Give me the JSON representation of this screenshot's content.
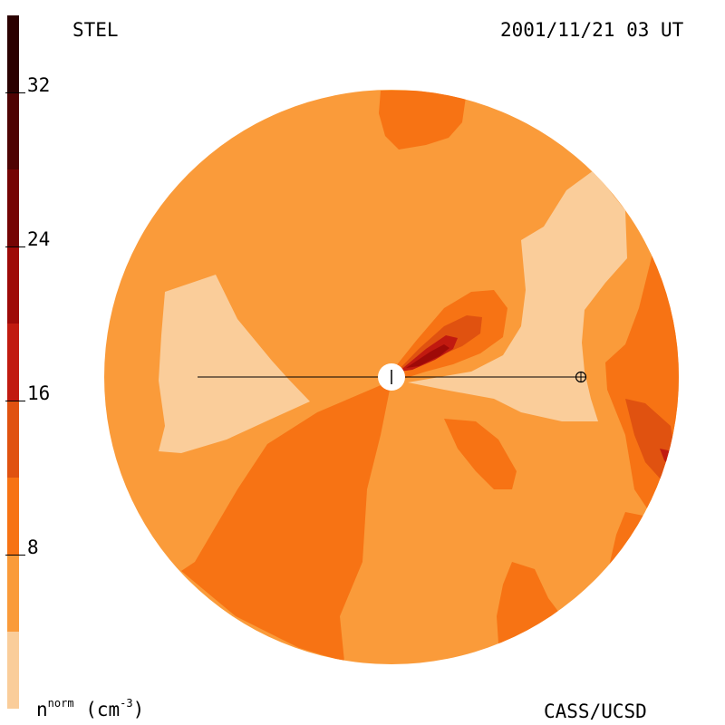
{
  "header": {
    "observatory": "STEL",
    "timestamp": "2001/11/21 03 UT"
  },
  "footer": {
    "credit": "CASS/UCSD",
    "unit_symbol": "n",
    "unit_superscript": "norm",
    "unit_paren": "(cm",
    "unit_exponent": "-3",
    "unit_close": ")"
  },
  "colorbar": {
    "tick_labels": [
      "32",
      "24",
      "16",
      "8"
    ],
    "levels_low_to_high": [
      "#FACD9A",
      "#FA9B3A",
      "#F77314",
      "#E05210",
      "#C11A10",
      "#9E0A08",
      "#750404",
      "#4F0303",
      "#2B0101"
    ],
    "scale_min": 0,
    "scale_max": 36
  },
  "colors": {
    "background_disk": "#FA9B3A",
    "low_density": "#FACD9A",
    "mid_density": "#F77314",
    "high_density": "#E05210",
    "peak_density": "#C11A10",
    "max_density": "#9E0A08"
  },
  "markers": {
    "sun": "sun-marker",
    "earth": "earth-marker"
  }
}
